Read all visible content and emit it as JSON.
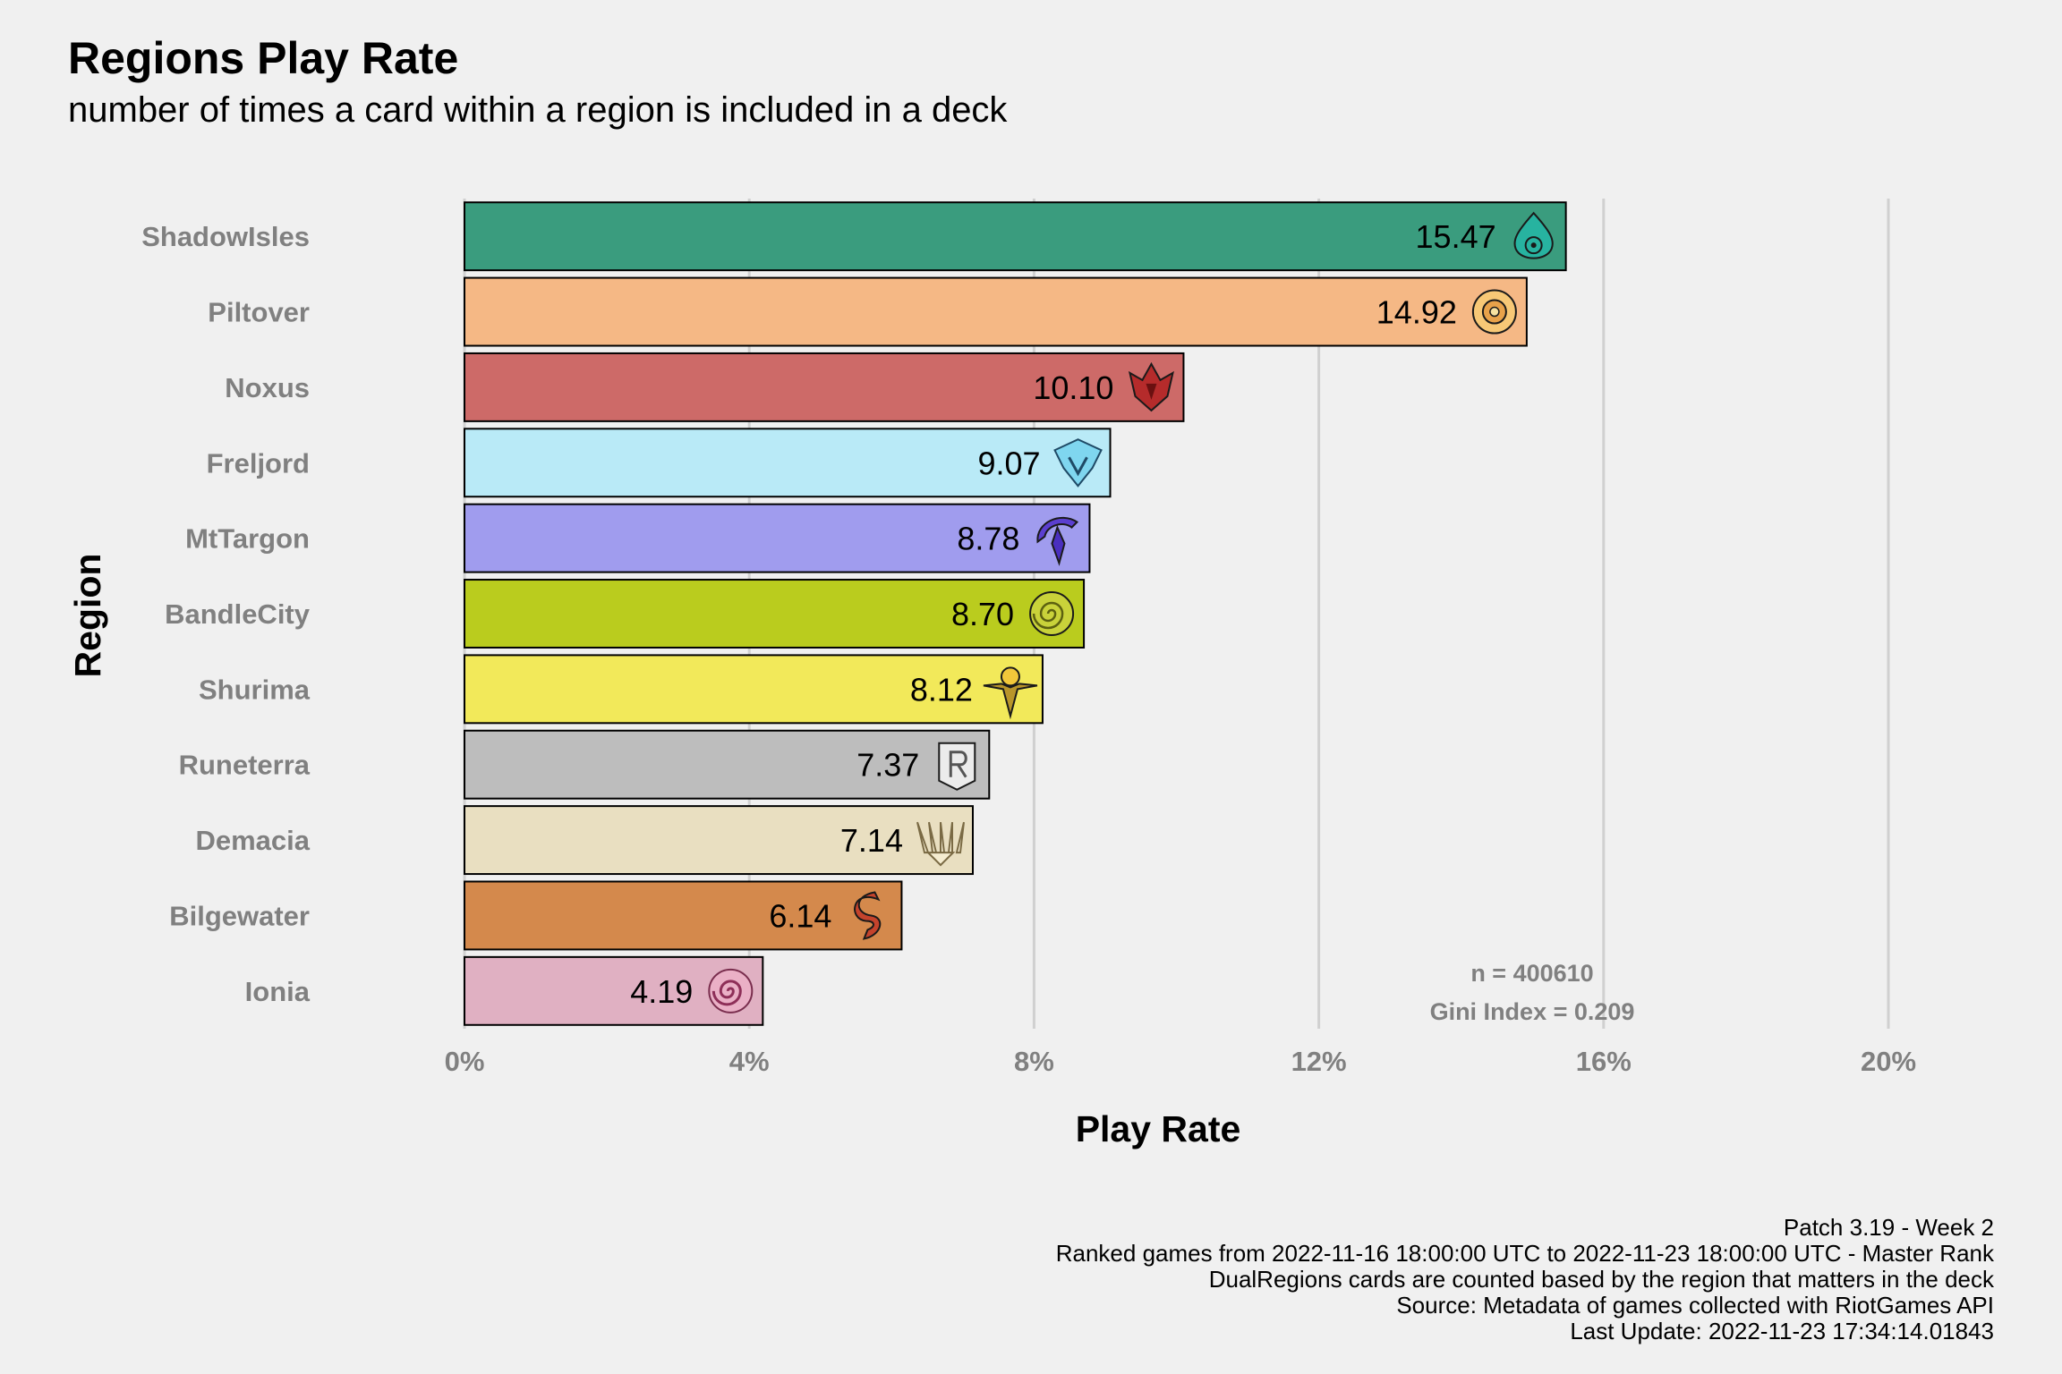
{
  "chart_data": {
    "type": "bar",
    "orientation": "horizontal",
    "title": "Regions Play Rate",
    "subtitle": "number of times a card within a region is included in a deck",
    "xlabel": "Play Rate",
    "ylabel": "Region",
    "xlim": [
      0,
      20
    ],
    "x_ticks": [
      "0%",
      "4%",
      "8%",
      "12%",
      "16%",
      "20%"
    ],
    "grid": "vertical major",
    "legend": "none",
    "categories": [
      "ShadowIsles",
      "Piltover",
      "Noxus",
      "Freljord",
      "MtTargon",
      "BandleCity",
      "Shurima",
      "Runeterra",
      "Demacia",
      "Bilgewater",
      "Ionia"
    ],
    "values": [
      15.47,
      14.92,
      10.1,
      9.07,
      8.78,
      8.7,
      8.12,
      7.37,
      7.14,
      6.14,
      4.19
    ],
    "value_labels": [
      "15.47",
      "14.92",
      "10.10",
      "9.07",
      "8.78",
      "8.70",
      "8.12",
      "7.37",
      "7.14",
      "6.14",
      "4.19"
    ],
    "colors": [
      "#3a9c7e",
      "#f5b885",
      "#cd6a68",
      "#b9eaf7",
      "#a09cee",
      "#bacc1e",
      "#f2e95a",
      "#bdbdbd",
      "#e9dfc1",
      "#d4894c",
      "#e0b0c2"
    ],
    "icons": [
      "shadow-isles-icon",
      "piltover-icon",
      "noxus-icon",
      "freljord-icon",
      "targon-icon",
      "bandle-city-icon",
      "shurima-icon",
      "runeterra-icon",
      "demacia-icon",
      "bilgewater-icon",
      "ionia-icon"
    ],
    "annotations": [
      "n = 400610",
      "Gini Index = 0.209"
    ],
    "caption": [
      "Patch 3.19 - Week 2",
      "Ranked games from 2022-11-16 18:00:00 UTC to 2022-11-23 18:00:00 UTC - Master Rank",
      "DualRegions cards are counted based by the region that matters in the deck",
      "Source: Metadata of games collected with RiotGames API",
      "Last Update: 2022-11-23 17:34:14.01843"
    ]
  }
}
